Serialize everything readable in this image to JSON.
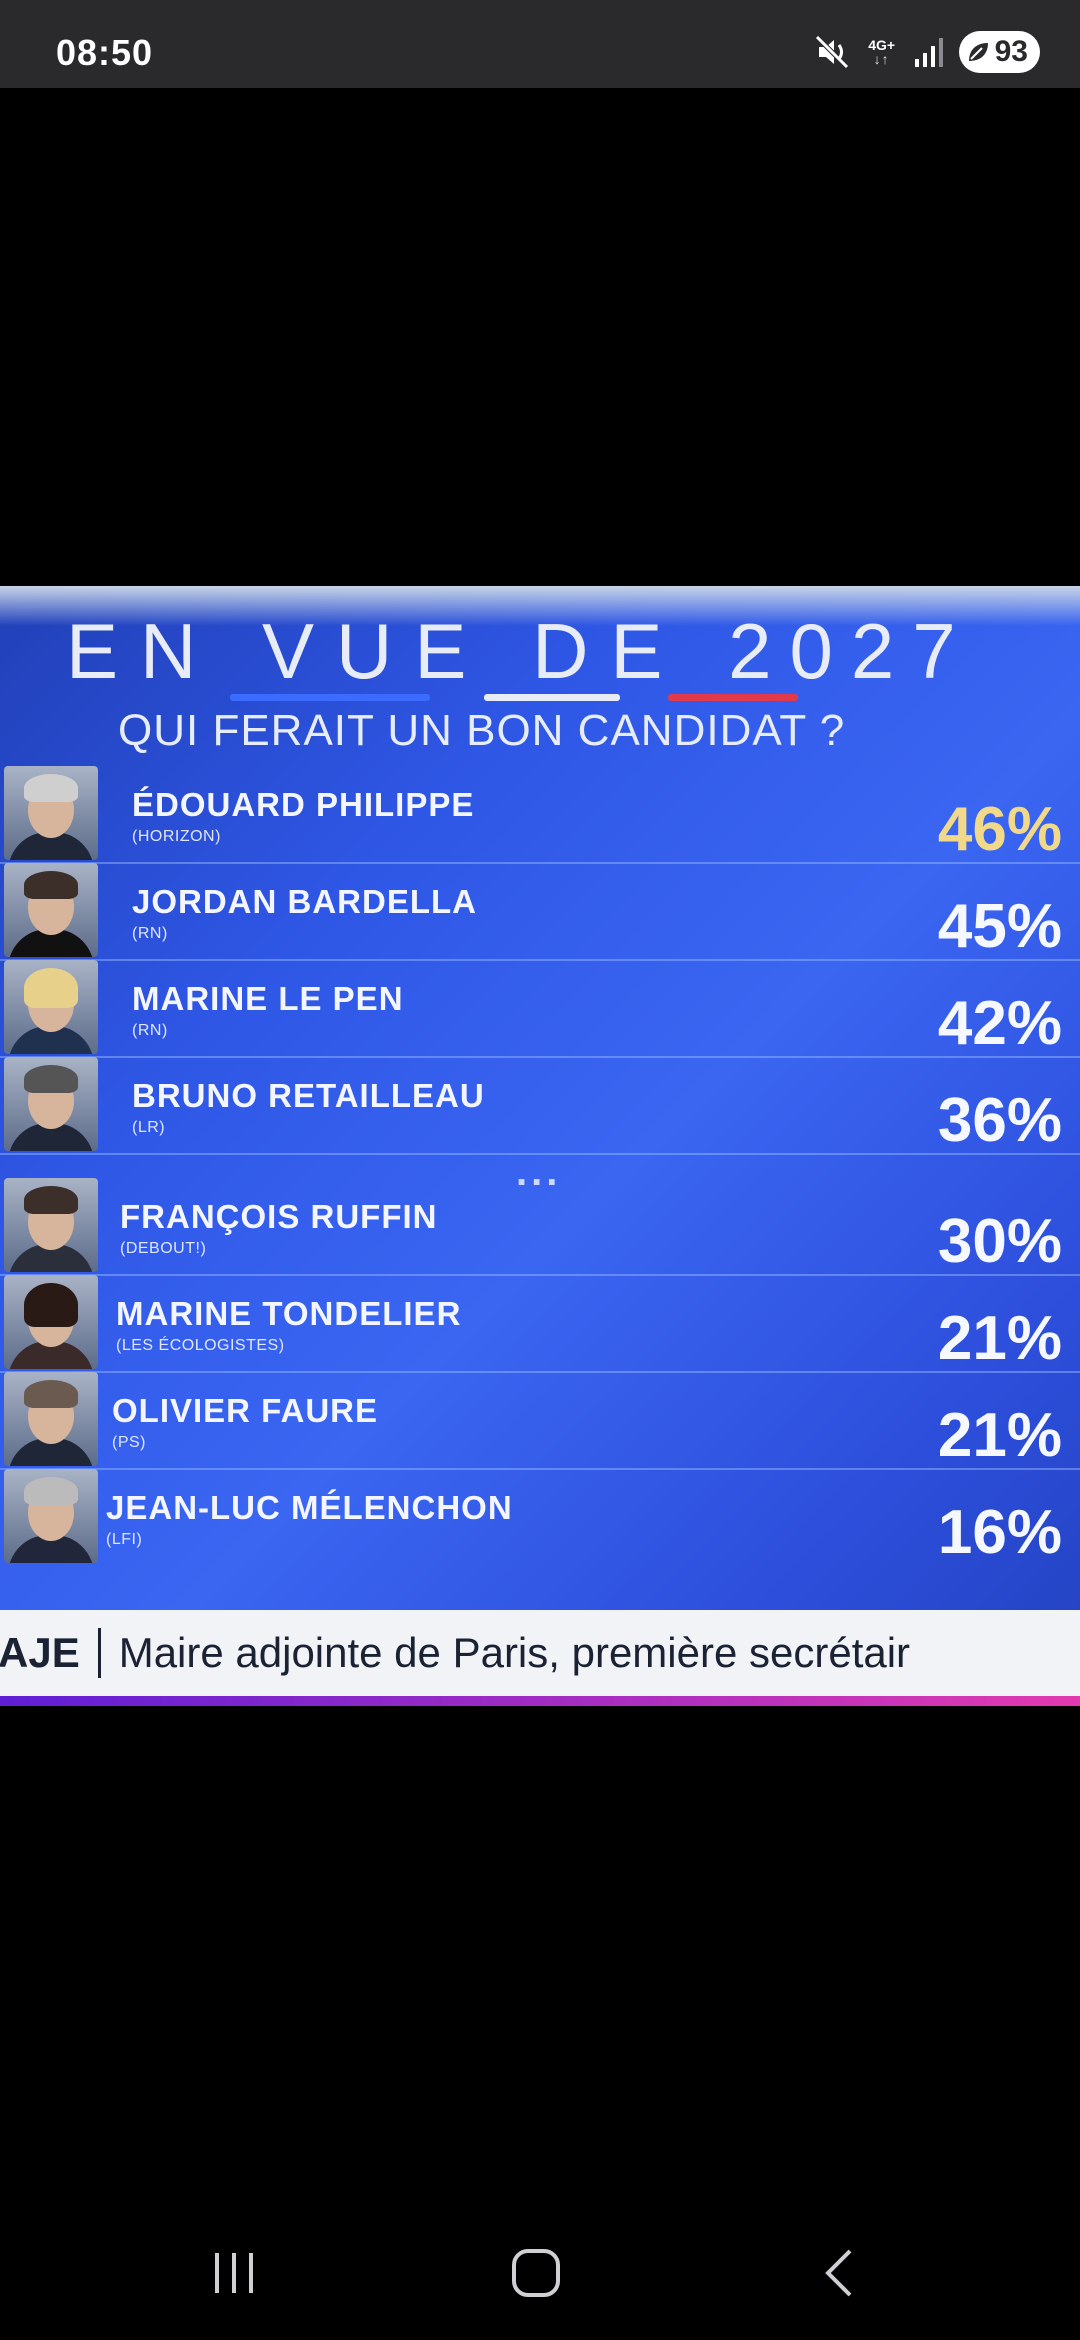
{
  "status_bar": {
    "time": "08:50",
    "network": "4G+",
    "battery": "93",
    "icons": [
      "mute-icon",
      "signal-icon",
      "battery-icon"
    ]
  },
  "photo": {
    "headline_words": [
      "EN",
      "VUE",
      "DE"
    ],
    "headline_year": "2027",
    "subtitle": "QUI FERAIT UN BON CANDIDAT ?",
    "candidates": [
      {
        "name": "ÉDOUARD PHILIPPE",
        "party": "(HORIZON)",
        "pct": "46%"
      },
      {
        "name": "JORDAN BARDELLA",
        "party": "(RN)",
        "pct": "45%"
      },
      {
        "name": "MARINE LE PEN",
        "party": "(RN)",
        "pct": "42%"
      },
      {
        "name": "BRUNO RETAILLEAU",
        "party": "(LR)",
        "pct": "36%"
      },
      {
        "name": "FRANÇOIS RUFFIN",
        "party": "(DEBOUT!)",
        "pct": "30%"
      },
      {
        "name": "MARINE TONDELIER",
        "party": "(LES ÉCOLOGISTES)",
        "pct": "21%"
      },
      {
        "name": "OLIVIER FAURE",
        "party": "(PS)",
        "pct": "21%"
      },
      {
        "name": "JEAN-LUC MÉLENCHON",
        "party": "(LFI)",
        "pct": "16%"
      }
    ],
    "ellipsis": "...",
    "ticker": {
      "tag": "AJE",
      "text": "Maire adjointe de Paris, première secrétair"
    },
    "colors": {
      "lead_pct": "#f2d98a",
      "background": "#2f57e6"
    }
  },
  "nav": {
    "recents": "recents-icon",
    "home": "home-icon",
    "back": "back-icon"
  }
}
